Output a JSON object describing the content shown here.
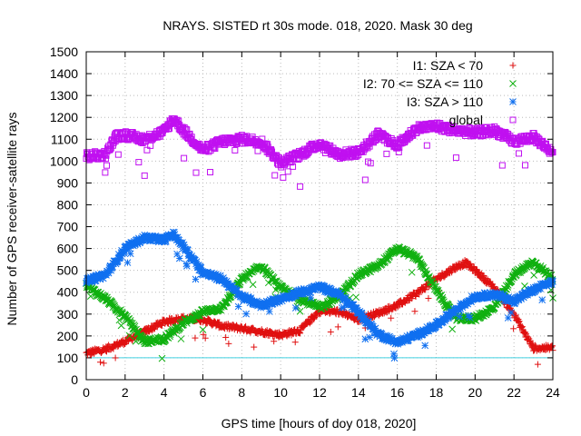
{
  "chart_data": {
    "type": "scatter",
    "title": "NRAYS. SISTED rt 30s mode. 018, 2020. Mask 30 deg",
    "xlabel": "GPS time [hours of doy 018, 2020]",
    "ylabel": "Number of GPS receiver-satellite rays",
    "xlim": [
      0,
      24
    ],
    "ylim": [
      0,
      1500
    ],
    "x_ticks": [
      0,
      2,
      4,
      6,
      8,
      10,
      12,
      14,
      16,
      18,
      20,
      22,
      24
    ],
    "y_ticks": [
      0,
      100,
      200,
      300,
      400,
      500,
      600,
      700,
      800,
      900,
      1000,
      1100,
      1200,
      1300,
      1400,
      1500
    ],
    "grid": true,
    "legend_position": "top-right",
    "reference_line": {
      "y": 100,
      "color": "#40d0e0"
    },
    "series": [
      {
        "name": "I1: SZA < 70",
        "marker": "plus",
        "color": "#e01010",
        "x": [
          0,
          1,
          2,
          3,
          4,
          5,
          6,
          7,
          8,
          9,
          10,
          11,
          12,
          13,
          14,
          15,
          16,
          17,
          18,
          19,
          19.5,
          20,
          21,
          22,
          22.5,
          23,
          24
        ],
        "y": [
          120,
          140,
          175,
          220,
          265,
          280,
          275,
          245,
          235,
          220,
          205,
          225,
          315,
          310,
          275,
          305,
          340,
          395,
          460,
          515,
          535,
          500,
          420,
          300,
          220,
          145,
          145
        ]
      },
      {
        "name": "I2: 70 <= SZA <= 110",
        "marker": "cross",
        "color": "#10b010",
        "x": [
          0,
          1,
          2,
          3,
          4,
          5,
          6,
          7,
          8,
          9,
          10,
          11,
          12,
          13,
          14,
          15,
          16,
          17,
          18,
          19,
          20,
          21,
          22,
          23,
          24
        ],
        "y": [
          430,
          370,
          290,
          175,
          185,
          260,
          310,
          330,
          460,
          520,
          420,
          370,
          330,
          380,
          480,
          520,
          600,
          560,
          410,
          280,
          280,
          330,
          480,
          540,
          460
        ]
      },
      {
        "name": "I3: SZA > 110",
        "marker": "star",
        "color": "#1070f0",
        "x": [
          0,
          1,
          2,
          3,
          4,
          4.5,
          5,
          6,
          7,
          8,
          9,
          10,
          11,
          12,
          13,
          14,
          15,
          16,
          17,
          18,
          19,
          20,
          21,
          22,
          23,
          24
        ],
        "y": [
          450,
          480,
          600,
          650,
          640,
          665,
          610,
          490,
          460,
          380,
          340,
          370,
          400,
          425,
          390,
          310,
          210,
          170,
          205,
          250,
          320,
          380,
          390,
          360,
          410,
          450
        ]
      },
      {
        "name": "global",
        "marker": "square",
        "color": "#c010f0",
        "x": [
          0,
          1,
          1.5,
          2,
          3,
          4,
          4.5,
          5,
          6,
          7,
          8,
          9,
          10,
          11,
          12,
          13,
          14,
          15,
          16,
          17,
          18,
          19,
          20,
          21,
          22,
          23,
          24
        ],
        "y": [
          1020,
          1030,
          1110,
          1120,
          1100,
          1135,
          1195,
          1140,
          1050,
          1090,
          1100,
          1090,
          990,
          1030,
          1080,
          1030,
          1040,
          1120,
          1070,
          1150,
          1160,
          1140,
          1130,
          1140,
          1090,
          1110,
          1040
        ]
      }
    ]
  }
}
